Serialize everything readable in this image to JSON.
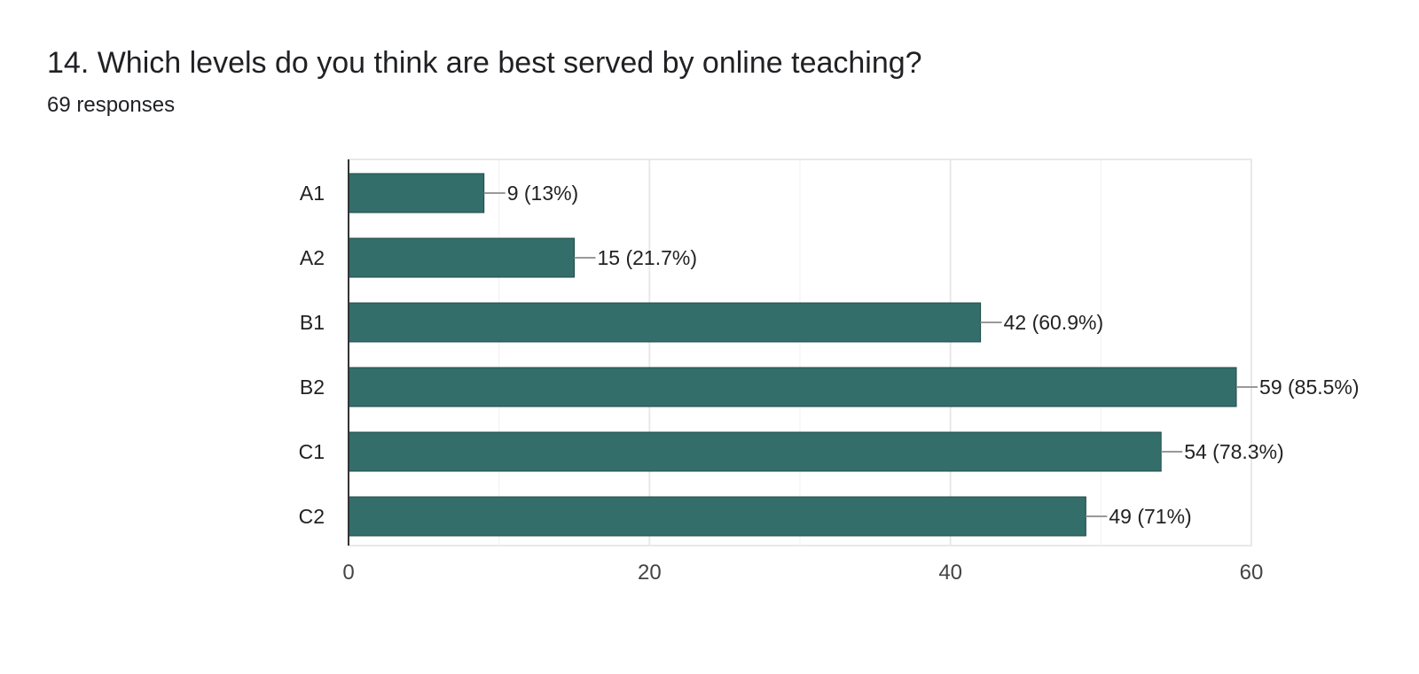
{
  "question": {
    "title": "14. Which levels do you think are best served by online teaching?",
    "responses": "69 responses"
  },
  "colors": {
    "bar": "#336e6b",
    "grid": "#e8e8e8",
    "axis": "#333333",
    "leader": "#999999"
  },
  "chart_data": {
    "type": "bar",
    "orientation": "horizontal",
    "categories": [
      "A1",
      "A2",
      "B1",
      "B2",
      "C1",
      "C2"
    ],
    "values": [
      9,
      15,
      42,
      59,
      54,
      49
    ],
    "data_labels": [
      "9 (13%)",
      "15 (21.7%)",
      "42 (60.9%)",
      "59 (85.5%)",
      "54 (78.3%)",
      "49 (71%)"
    ],
    "xlim": [
      0,
      60
    ],
    "xticks": [
      0,
      20,
      40,
      60
    ],
    "grid": true,
    "legend": "none"
  }
}
